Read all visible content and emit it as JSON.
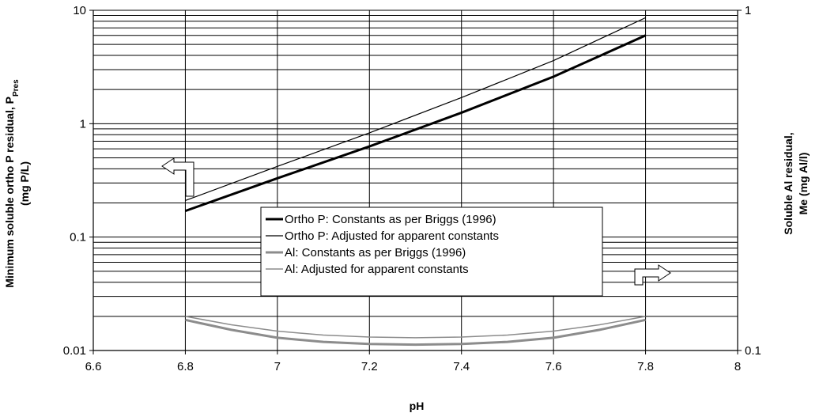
{
  "chart_data": {
    "type": "line",
    "xlabel": "pH",
    "ylabel_left": {
      "main": "Minimum soluble ortho P residual, P",
      "subscript": "Pres",
      "line2": "(mg P/L)"
    },
    "ylabel_right": {
      "line1": "Soluble Al residual,",
      "line2": "Me (mg Al/l)"
    },
    "xlim": [
      6.6,
      8
    ],
    "xticks": [
      "6.6",
      "6.8",
      "7",
      "7.2",
      "7.4",
      "7.6",
      "7.8",
      "8"
    ],
    "y_left": {
      "scale": "log",
      "lim": [
        0.01,
        10
      ],
      "ticks": [
        "0.01",
        "0.1",
        "1",
        "10"
      ]
    },
    "y_right": {
      "scale": "log",
      "lim": [
        0.1,
        1
      ],
      "ticks": [
        "0.1",
        "1"
      ]
    },
    "grid": true,
    "legend_position": "center",
    "series": [
      {
        "name": "Ortho P: Constants as per Briggs (1996)",
        "axis": "left",
        "color": "#000000",
        "width": 3,
        "x": [
          6.8,
          7.0,
          7.2,
          7.4,
          7.6,
          7.8
        ],
        "y": [
          0.17,
          0.33,
          0.63,
          1.25,
          2.6,
          6.0
        ]
      },
      {
        "name": "Ortho P: Adjusted for apparent constants",
        "axis": "left",
        "color": "#000000",
        "width": 1.2,
        "x": [
          6.8,
          7.0,
          7.2,
          7.4,
          7.6,
          7.8
        ],
        "y": [
          0.21,
          0.42,
          0.83,
          1.7,
          3.6,
          8.6
        ]
      },
      {
        "name": "Al: Constants as per Briggs (1996)",
        "axis": "right",
        "color": "#8c8c8c",
        "width": 3,
        "x": [
          6.8,
          6.9,
          7.0,
          7.1,
          7.2,
          7.3,
          7.4,
          7.5,
          7.6,
          7.7,
          7.8
        ],
        "y": [
          0.123,
          0.115,
          0.109,
          0.106,
          0.1045,
          0.104,
          0.1045,
          0.106,
          0.109,
          0.115,
          0.123
        ]
      },
      {
        "name": "Al: Adjusted for apparent constants",
        "axis": "right",
        "color": "#8c8c8c",
        "width": 1.5,
        "x": [
          6.8,
          6.9,
          7.0,
          7.1,
          7.2,
          7.3,
          7.4,
          7.5,
          7.6,
          7.7,
          7.8
        ],
        "y": [
          0.126,
          0.119,
          0.114,
          0.111,
          0.1095,
          0.109,
          0.1095,
          0.111,
          0.114,
          0.119,
          0.126
        ]
      }
    ]
  }
}
